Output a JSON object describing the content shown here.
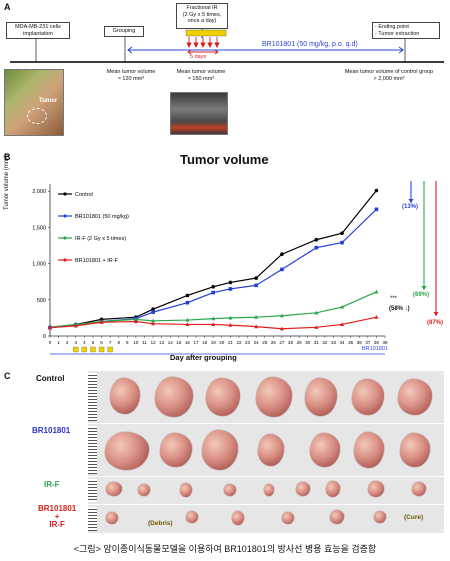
{
  "panel_a": {
    "letter": "A",
    "implantation": [
      "MDA-MB-231 cells",
      "implantation"
    ],
    "grouping": "Grouping",
    "fractional_ir": [
      "Fractional IR",
      "(2 Gy x 5 times,",
      "once a day)"
    ],
    "ending": [
      "- Ending point",
      "- Tumor extraction"
    ],
    "days": "5 days",
    "treatment": "BR101801 (50 mg/kg, p.o. q.d)",
    "tumor_label": "Tumor",
    "vol1": [
      "Mean tumor volume",
      "≈ 120 mm³"
    ],
    "vol2": [
      "Mean tumor volume",
      "≈ 150 mm³"
    ],
    "vol3": [
      "Mean tumor volume of control group",
      "> 2,000 mm³"
    ]
  },
  "panel_b": {
    "letter": "B",
    "title": "Tumor volume",
    "ylabel": "Tumor volume (mm³)",
    "xlabel": "Day after grouping",
    "br_label": "BR101801",
    "sig": "***",
    "pct_blue": "(13%)",
    "pct_green": "(69%)",
    "pct_red": "(87%)",
    "pct_gap": "(58% ↓)"
  },
  "chart_data": {
    "type": "line",
    "title": "Tumor volume",
    "xlabel": "Day after grouping",
    "ylabel": "Tumor volume (mm³)",
    "x": [
      0,
      2,
      4,
      6,
      8,
      10,
      12,
      14,
      16,
      18,
      20,
      22,
      24,
      26,
      28,
      30,
      32,
      34,
      36,
      38
    ],
    "xticks": [
      "0",
      "1",
      "2",
      "3",
      "4",
      "5",
      "6",
      "7",
      "8",
      "9",
      "10",
      "11",
      "12",
      "13",
      "14",
      "15",
      "16",
      "17",
      "18",
      "19",
      "20",
      "21",
      "22",
      "23",
      "24",
      "25",
      "26",
      "27",
      "28",
      "29",
      "30",
      "31",
      "32",
      "33",
      "34",
      "35",
      "36",
      "37",
      "38",
      "39"
    ],
    "yticks": [
      "0",
      "500",
      "1,000",
      "1,500",
      "2,000"
    ],
    "ylim": [
      0,
      2100
    ],
    "xlim": [
      0,
      39
    ],
    "x_values": [
      0,
      3,
      6,
      10,
      12,
      16,
      19,
      21,
      24,
      27,
      31,
      34,
      38
    ],
    "series": [
      {
        "name": "Control",
        "color": "#000000",
        "values": [
          120,
          160,
          230,
          260,
          370,
          560,
          680,
          740,
          800,
          1130,
          1330,
          1420,
          2010
        ]
      },
      {
        "name": "BR101801 (50 mg/kg)",
        "color": "#1f3fd8",
        "values": [
          115,
          150,
          200,
          240,
          330,
          460,
          600,
          650,
          700,
          920,
          1220,
          1290,
          1750
        ]
      },
      {
        "name": "IR-F (2 Gy x 5 times)",
        "color": "#2aa84a",
        "values": [
          118,
          160,
          200,
          230,
          210,
          220,
          240,
          250,
          260,
          280,
          320,
          400,
          610
        ]
      },
      {
        "name": "BR101801 + IR-F",
        "color": "#e02020",
        "values": [
          115,
          140,
          190,
          200,
          170,
          160,
          160,
          150,
          130,
          100,
          120,
          160,
          260
        ]
      }
    ],
    "legend": "top-left"
  },
  "panel_c": {
    "letter": "C",
    "rows": [
      {
        "label": "Control",
        "color": "#111111"
      },
      {
        "label": "BR101801",
        "color": "#2a35c8"
      },
      {
        "label": "IR-F",
        "color": "#2aa84a"
      },
      {
        "label": "BR101801\n+\nIR-F",
        "color": "#d42020"
      }
    ],
    "debris": "(Debris)",
    "cure": "(Cure)"
  },
  "caption": "<그림> 암이종이식동물모델을 이용하여 BR101801의 방사선 병용 효능을 검증함"
}
